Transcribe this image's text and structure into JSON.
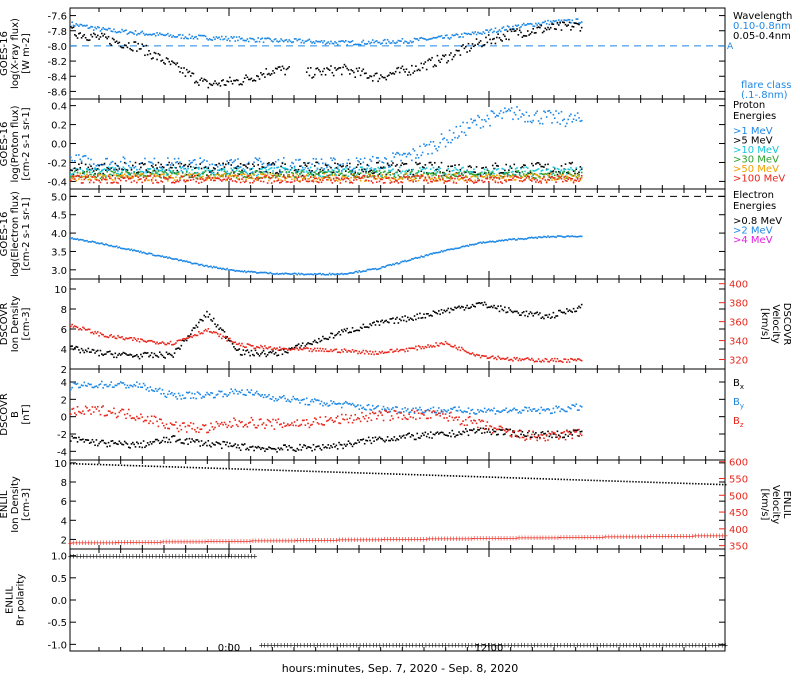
{
  "footer": {
    "xaxis_label": "hours:minutes, Sep.  7, 2020 - Sep.  8, 2020"
  },
  "x_ticks": [
    "0:00",
    "12:00"
  ],
  "colors": {
    "black": "#000000",
    "blue": "#1e88e5",
    "cyan": "#18c8d8",
    "green": "#2ca02c",
    "orange": "#f0a000",
    "red": "#e8271c",
    "magenta": "#e020e0"
  },
  "chart_data": [
    {
      "type": "scatter",
      "panel": "goes_xray",
      "ylabel": [
        "GOES-16",
        "log(X-ray flux)",
        "[W m-2]"
      ],
      "yticks": [
        "-7.6",
        "-7.8",
        "-8.0",
        "-8.2",
        "-8.4",
        "-8.6"
      ],
      "ylim": [
        -8.7,
        -7.5
      ],
      "legend_title": "Wavelength",
      "flare_class_label": [
        "flare class",
        "(.1-.8nm)"
      ],
      "flare_marker": "A",
      "dashed_threshold": -8.0,
      "series": [
        {
          "name": "0.10-0.8nm",
          "color": "blue",
          "base": [
            -7.7,
            -7.78,
            -7.82,
            -7.86,
            -7.88,
            -7.9,
            -7.92,
            -7.93,
            -7.95,
            -7.94,
            -7.92,
            -7.88,
            -7.82,
            -7.74,
            -7.68,
            -7.66
          ],
          "noise": 0.03
        },
        {
          "name": "0.05-0.4nm",
          "color": "black",
          "base": [
            -7.8,
            -7.9,
            -8.0,
            -8.25,
            -8.5,
            -8.45,
            -8.3,
            -8.35,
            -8.3,
            -8.4,
            -8.3,
            -8.15,
            -7.95,
            -7.82,
            -7.76,
            -7.72
          ],
          "noise": 0.07,
          "gap": [
            0.43,
            0.46
          ]
        }
      ]
    },
    {
      "type": "scatter",
      "panel": "goes_proton",
      "ylabel": [
        "GOES-16",
        "log(Proton flux)",
        "[cm-2 s-1 sr-1]"
      ],
      "yticks": [
        "0.4",
        "0.2",
        "0.0",
        "-0.2",
        "-0.4"
      ],
      "ylim": [
        -0.48,
        0.47
      ],
      "legend_title": [
        "Proton",
        "Energies"
      ],
      "series": [
        {
          "name": ">1 MeV",
          "color": "blue",
          "base": [
            -0.18,
            -0.2,
            -0.22,
            -0.22,
            -0.22,
            -0.22,
            -0.22,
            -0.22,
            -0.22,
            -0.2,
            -0.12,
            0.05,
            0.25,
            0.33,
            0.28,
            0.25
          ],
          "noise": 0.08
        },
        {
          "name": ">5 MeV",
          "color": "black",
          "base": [
            -0.25,
            -0.26,
            -0.26,
            -0.26,
            -0.26,
            -0.26,
            -0.26,
            -0.26,
            -0.26,
            -0.26,
            -0.26,
            -0.26,
            -0.26,
            -0.26,
            -0.26,
            -0.26
          ],
          "noise": 0.07
        },
        {
          "name": ">10 MeV",
          "color": "cyan",
          "base": [
            -0.29,
            -0.29,
            -0.29,
            -0.29,
            -0.29,
            -0.29,
            -0.29,
            -0.29,
            -0.29,
            -0.29,
            -0.29,
            -0.29,
            -0.29,
            -0.29,
            -0.29,
            -0.29
          ],
          "noise": 0.05
        },
        {
          "name": ">30 MeV",
          "color": "green",
          "base": [
            -0.32,
            -0.32,
            -0.32,
            -0.32,
            -0.32,
            -0.32,
            -0.32,
            -0.32,
            -0.32,
            -0.32,
            -0.32,
            -0.32,
            -0.32,
            -0.32,
            -0.32,
            -0.32
          ],
          "noise": 0.04
        },
        {
          "name": ">50 MeV",
          "color": "orange",
          "base": [
            -0.35,
            -0.35,
            -0.35,
            -0.35,
            -0.35,
            -0.35,
            -0.35,
            -0.35,
            -0.35,
            -0.35,
            -0.35,
            -0.35,
            -0.35,
            -0.35,
            -0.35,
            -0.35
          ],
          "noise": 0.04
        },
        {
          "name": ">100 MeV",
          "color": "red",
          "base": [
            -0.37,
            -0.37,
            -0.37,
            -0.37,
            -0.37,
            -0.37,
            -0.37,
            -0.37,
            -0.37,
            -0.37,
            -0.37,
            -0.37,
            -0.37,
            -0.37,
            -0.37,
            -0.37
          ],
          "noise": 0.04
        }
      ]
    },
    {
      "type": "line",
      "panel": "goes_electron",
      "ylabel": [
        "GOES-16",
        "log(Electron flux)",
        "[cm-2 s-1 sr-1]"
      ],
      "yticks": [
        "5.0",
        "4.5",
        "4.0",
        "3.5",
        "3.0"
      ],
      "ylim": [
        2.75,
        5.2
      ],
      "legend_title": [
        "Electron",
        "Energies"
      ],
      "dashed_threshold": 5.0,
      "series": [
        {
          "name": ">0.8 MeV",
          "color": "black",
          "values": []
        },
        {
          "name": ">2 MeV",
          "color": "blue",
          "base": [
            3.88,
            3.72,
            3.52,
            3.32,
            3.12,
            2.98,
            2.92,
            2.9,
            2.91,
            3.05,
            3.3,
            3.55,
            3.75,
            3.85,
            3.92,
            3.94
          ],
          "noise": 0.02
        },
        {
          "name": ">4 MeV",
          "color": "magenta",
          "values": []
        }
      ]
    },
    {
      "type": "scatter",
      "panel": "dscovr_density",
      "ylabel": [
        "DSCOVR",
        "Ion Density",
        "[cm-3]"
      ],
      "yticks": [
        "10",
        "8",
        "6",
        "4",
        "2"
      ],
      "ylim": [
        2,
        11
      ],
      "right_ylabel": [
        "DSCOVR",
        "Velocity",
        "[km/s]"
      ],
      "right_yticks": [
        "400",
        "380",
        "360",
        "340",
        "320"
      ],
      "right_ylim": [
        310,
        405
      ],
      "series": [
        {
          "name": "Ion Density",
          "color": "black",
          "base": [
            4.1,
            3.6,
            3.4,
            3.5,
            7.6,
            3.7,
            3.6,
            4.6,
            5.8,
            6.6,
            7.2,
            7.9,
            8.6,
            7.8,
            7.3,
            8.3
          ],
          "noise": 0.3
        },
        {
          "name": "Velocity",
          "color": "red",
          "axis": "right",
          "base": [
            357,
            346,
            341,
            338,
            352,
            336,
            332,
            331,
            330,
            328,
            332,
            338,
            325,
            321,
            320,
            320
          ],
          "noise": 2
        }
      ]
    },
    {
      "type": "scatter",
      "panel": "dscovr_b",
      "ylabel": [
        "DSCOVR",
        "B",
        "[nT]"
      ],
      "yticks": [
        "4",
        "2",
        "0",
        "-2",
        "-4"
      ],
      "ylim": [
        -5,
        5.5
      ],
      "series": [
        {
          "name": "Bx",
          "color": "black",
          "base": [
            -2.5,
            -3.0,
            -3.2,
            -2.5,
            -3.0,
            -3.4,
            -3.6,
            -3.5,
            -3.2,
            -2.5,
            -2.2,
            -2.0,
            -1.5,
            -1.8,
            -2.0,
            -1.8
          ],
          "noise": 0.4
        },
        {
          "name": "By",
          "color": "blue",
          "base": [
            3.6,
            3.8,
            3.7,
            2.5,
            2.6,
            3.0,
            2.3,
            1.8,
            1.5,
            1.0,
            0.9,
            0.8,
            0.8,
            0.8,
            0.8,
            1.2
          ],
          "noise": 0.4
        },
        {
          "name": "Bz",
          "color": "red",
          "base": [
            0.6,
            0.8,
            0.2,
            -1.0,
            -1.3,
            -0.5,
            -0.8,
            -0.6,
            -0.2,
            0.2,
            0.3,
            0.2,
            -0.8,
            -2.0,
            -2.3,
            -1.8
          ],
          "noise": 0.6
        }
      ]
    },
    {
      "type": "line",
      "panel": "enlil_density",
      "ylabel": [
        "ENLIL",
        "Ion Density",
        "[cm-3]"
      ],
      "yticks": [
        "10",
        "8",
        "6",
        "4",
        "2"
      ],
      "ylim": [
        1,
        10.3
      ],
      "right_ylabel": [
        "ENLIL",
        "Velocity",
        "[km/s]"
      ],
      "right_yticks": [
        "600",
        "550",
        "500",
        "450",
        "400",
        "350"
      ],
      "right_ylim": [
        340,
        605
      ],
      "series": [
        {
          "name": "Ion Density",
          "color": "black",
          "x": [
            0,
            1
          ],
          "values": [
            9.9,
            7.7
          ]
        },
        {
          "name": "Velocity",
          "color": "red",
          "axis": "right",
          "x": [
            0,
            1
          ],
          "values": [
            360,
            382
          ]
        }
      ]
    },
    {
      "type": "line",
      "panel": "enlil_polarity",
      "ylabel": [
        "ENLIL",
        "Br polarity"
      ],
      "yticks": [
        "1.0",
        "0.5",
        "0.0",
        "-0.5",
        "-1.0"
      ],
      "ylim": [
        -1.15,
        1.15
      ],
      "series": [
        {
          "name": "Br polarity",
          "color": "black",
          "x": [
            0,
            0.286,
            0.286,
            1
          ],
          "values": [
            1,
            1,
            -1,
            -1
          ]
        }
      ]
    }
  ],
  "legends": {
    "xray": [
      "Wavelength",
      "0.10-0.8nm",
      "0.05-0.4nm"
    ],
    "proton": [
      ">1 MeV",
      ">5 MeV",
      ">10 MeV",
      ">30 MeV",
      ">50 MeV",
      ">100 MeV"
    ],
    "electron": [
      ">0.8 MeV",
      ">2 MeV",
      ">4 MeV"
    ],
    "b": [
      "Bx",
      "By",
      "Bz"
    ]
  }
}
